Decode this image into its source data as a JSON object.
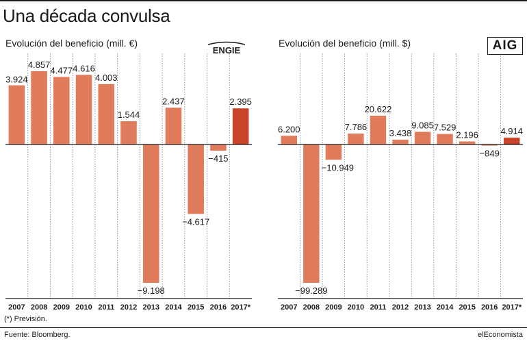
{
  "title": "Una década convulsa",
  "footnote": "(*) Previsión.",
  "source": "Fuente: Bloomberg.",
  "brand": "elEconomista",
  "colors": {
    "bar": "#e07b5c",
    "highlight": "#c8432a",
    "text": "#1a1a1a",
    "grid": "#777777"
  },
  "chart_data": [
    {
      "type": "bar",
      "title": "Evolución del beneficio (mill. €)",
      "logo": "ENGIE",
      "categories": [
        "2007",
        "2008",
        "2009",
        "2010",
        "2011",
        "2012",
        "2013",
        "2014",
        "2015",
        "2016",
        "2017*"
      ],
      "values": [
        3924,
        4857,
        4477,
        4616,
        4003,
        1544,
        -9198,
        2437,
        -4617,
        -415,
        2395
      ],
      "labels": [
        "3.924",
        "4.857",
        "4.477",
        "4.616",
        "4.003",
        "1.544",
        "−9.198",
        "2.437",
        "−4.617",
        "−415",
        "2.395"
      ],
      "highlight_index": 10,
      "ylim": [
        -9198,
        4857
      ]
    },
    {
      "type": "bar",
      "title": "Evolución del beneficio (mill. $)",
      "logo": "AIG",
      "categories": [
        "2007",
        "2008",
        "2009",
        "2010",
        "2011",
        "2012",
        "2013",
        "2014",
        "2015",
        "2016",
        "2017*"
      ],
      "values": [
        6200,
        -99289,
        -10949,
        7786,
        20622,
        3438,
        9085,
        7529,
        2196,
        -849,
        4914
      ],
      "labels": [
        "6.200",
        "−99.289",
        "−10.949",
        "7.786",
        "20.622",
        "3.438",
        "9.085",
        "7.529",
        "2.196",
        "−849",
        "4.914"
      ],
      "highlight_index": 10,
      "ylim": [
        -99289,
        20622
      ]
    }
  ]
}
